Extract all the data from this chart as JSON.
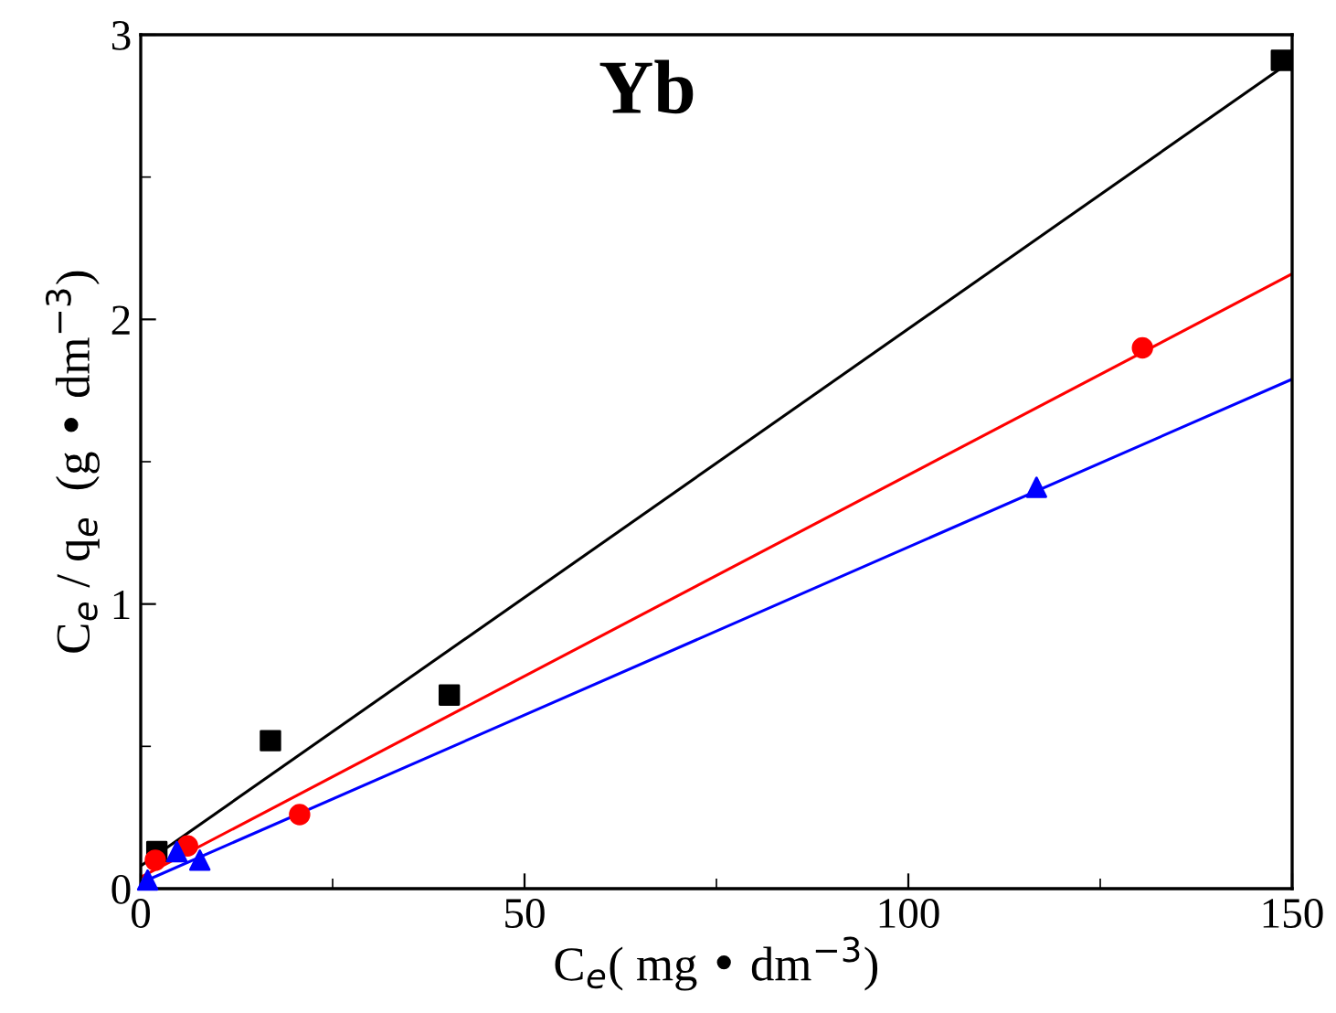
{
  "chart_data": {
    "type": "scatter",
    "title": "Yb",
    "xlabel": "C$_{e}$( mg • dm$^{−3}$)",
    "ylabel": "C$_{e}$ / q$_{e}$  (g • dm$^{−3}$)",
    "xlim": [
      0,
      150
    ],
    "ylim": [
      0,
      3
    ],
    "xticks": [
      0,
      50,
      100,
      150
    ],
    "yticks": [
      0,
      1,
      2,
      3
    ],
    "grid": false,
    "series": [
      {
        "marker": "square",
        "color": "#000000",
        "x": [
          2.1,
          16.9,
          40.2,
          148.6
        ],
        "values": [
          0.13,
          0.52,
          0.68,
          2.91
        ]
      },
      {
        "marker": "circle",
        "color": "#ff0000",
        "x": [
          1.9,
          6.1,
          20.7,
          130.5
        ],
        "values": [
          0.1,
          0.15,
          0.26,
          1.9
        ]
      },
      {
        "marker": "triangle",
        "color": "#0000ff",
        "x": [
          0.9,
          4.7,
          7.7,
          116.7
        ],
        "values": [
          0.03,
          0.13,
          0.1,
          1.41
        ]
      },
      {
        "type": "line",
        "marker": "none",
        "line_style": "solid",
        "color": "#000000",
        "x": [
          0,
          150
        ],
        "values": [
          0.08,
          2.91
        ]
      },
      {
        "type": "line",
        "marker": "none",
        "line_style": "solid",
        "color": "#ff0000",
        "x": [
          0,
          150
        ],
        "values": [
          0.04,
          2.16
        ]
      },
      {
        "type": "line",
        "marker": "none",
        "line_style": "solid",
        "color": "#0000ff",
        "x": [
          0,
          150
        ],
        "values": [
          0.02,
          1.79
        ]
      }
    ]
  }
}
